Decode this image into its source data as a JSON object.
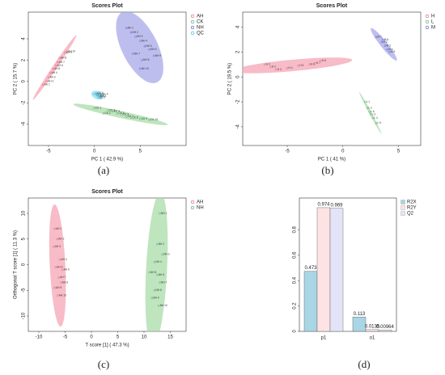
{
  "chart_data": [
    {
      "type": "scatter",
      "title": "Scores Plot",
      "panel_label": "(a)",
      "x_label": "PC 1 ( 42.9 %)",
      "y_label": "PC 2 ( 15.7 %)",
      "xlim": [
        -7.2,
        10
      ],
      "ylim": [
        -6,
        6.5
      ],
      "xticks": [
        -5,
        0,
        5
      ],
      "yticks": [
        -4,
        -2,
        0,
        2,
        4
      ],
      "legend": "right",
      "series": [
        {
          "name": "AH",
          "color": "#e0506a",
          "fill": "#f4a6b4",
          "x": [
            -5.6,
            -5.2,
            -5,
            -4.8,
            -4.5,
            -4.2,
            -4,
            -3.8,
            -3.2,
            -3
          ],
          "y": [
            -0.3,
            0,
            0.4,
            0.8,
            1.2,
            1.5,
            1.8,
            2.2,
            2.7,
            2.8
          ],
          "labels": [
            "AH 1",
            "AH 2",
            "AH 3",
            "AH 4",
            "AH 5",
            "AH 6",
            "AH 7",
            "AH 8",
            "AH 9",
            "AH 10"
          ]
        },
        {
          "name": "CK",
          "color": "#3aa55a",
          "fill": "#a8dca8",
          "x": [
            0,
            1,
            1.5,
            2,
            2.5,
            3,
            3.5,
            4,
            5,
            6
          ],
          "y": [
            -2.5,
            -3,
            -2.7,
            -2.8,
            -3,
            -3.1,
            -3.3,
            -3.4,
            -3.5,
            -3.6
          ],
          "labels": [
            "CK 1",
            "CK 2",
            "CK 3",
            "CK 4",
            "CK 5",
            "CK 6",
            "CK 7",
            "CK 8",
            "CK 9",
            "CK 10"
          ]
        },
        {
          "name": "NH",
          "color": "#4a4ad0",
          "fill": "#a8a8e8",
          "x": [
            3.5,
            4,
            4.5,
            5,
            5.5,
            6,
            4.2,
            5.2,
            6.5,
            5
          ],
          "y": [
            5,
            4.6,
            4.2,
            3.8,
            3.3,
            3,
            2.6,
            2,
            2.4,
            1.2
          ],
          "labels": [
            "NH 1",
            "NH 2",
            "NH 3",
            "NH 4",
            "NH 5",
            "NH 6",
            "NH 7",
            "NH 8",
            "NH 9",
            "NH 10"
          ]
        },
        {
          "name": "QC",
          "color": "#20b8e0",
          "fill": "#90dcf0",
          "x": [
            0,
            0.3,
            0.5,
            0.7,
            0.4,
            0.2
          ],
          "y": [
            -1.2,
            -1.3,
            -1.4,
            -1.2,
            -1.5,
            -1.1
          ],
          "labels": [
            "QC 1",
            "QC 2",
            "QC 3",
            "QC 4",
            "QC 5",
            "QC 6"
          ]
        }
      ]
    },
    {
      "type": "scatter",
      "title": "Scores Plot",
      "panel_label": "(b)",
      "x_label": "PC 1 ( 41 %)",
      "y_label": "PC 2 ( 19.5 %)",
      "xlim": [
        -9,
        7
      ],
      "ylim": [
        -5.5,
        5.2
      ],
      "xticks": [
        -5,
        0,
        5
      ],
      "yticks": [
        -4,
        -2,
        0,
        2,
        4
      ],
      "legend": "right",
      "series": [
        {
          "name": "H",
          "color": "#e0506a",
          "fill": "#f4a6b4",
          "x": [
            -7,
            -6.5,
            -6,
            -5,
            -4,
            -3,
            -2.5,
            -2
          ],
          "y": [
            1,
            0.8,
            0.6,
            0.7,
            0.9,
            1,
            1.1,
            1.3
          ],
          "labels": [
            "H 1",
            "H 2",
            "H 3",
            "H 4",
            "H 5",
            "H 6",
            "H 7",
            "H 8"
          ]
        },
        {
          "name": "L",
          "color": "#3aa55a",
          "fill": "#a8dca8",
          "x": [
            2,
            2.2,
            2.5,
            2.7,
            3,
            2.4
          ],
          "y": [
            -2,
            -2.5,
            -3,
            -3.3,
            -3.7,
            -2.8
          ],
          "labels": [
            "L 1",
            "L 2",
            "L 3",
            "L 4",
            "L 5",
            "L 6"
          ]
        },
        {
          "name": "M",
          "color": "#4a4ad0",
          "fill": "#a8a8e8",
          "x": [
            3,
            3.5,
            3.8,
            4,
            4.2,
            3.6
          ],
          "y": [
            3.2,
            2.8,
            2.5,
            2.2,
            2,
            3
          ],
          "labels": [
            "M 1",
            "M 2",
            "M 3",
            "M 4",
            "M 5",
            "M 6"
          ]
        }
      ]
    },
    {
      "type": "scatter",
      "title": "Scores Plot",
      "panel_label": "(c)",
      "x_label": "T score [1] ( 47.3 %)",
      "y_label": "Orthogonal T score [1] ( 11.3 %)",
      "xlim": [
        -12,
        18
      ],
      "ylim": [
        -13,
        13
      ],
      "xticks": [
        -10,
        -5,
        0,
        5,
        10,
        15
      ],
      "yticks": [
        -10,
        -5,
        0,
        5,
        10
      ],
      "legend": "right",
      "series": [
        {
          "name": "AH",
          "color": "#e0506a",
          "fill": "#f4a6b4",
          "x": [
            -7,
            -6.5,
            -7.2,
            -6,
            -6.8,
            -5.5,
            -6.2,
            -5.8,
            -7,
            -6.4
          ],
          "y": [
            7,
            5,
            3.5,
            1,
            -0.5,
            -1,
            -2.5,
            -3.5,
            -4.5,
            -6
          ],
          "labels": [
            "AH 1",
            "AH 2",
            "AH 3",
            "AH 4",
            "AH 5",
            "AH 6",
            "AH 7",
            "AH 8",
            "AH 9",
            "AH 10"
          ]
        },
        {
          "name": "NH",
          "color": "#3aa55a",
          "fill": "#a8dca8",
          "x": [
            13,
            12.5,
            13.5,
            12,
            11,
            12.5,
            13,
            12,
            11.5,
            12.8
          ],
          "y": [
            10,
            4,
            2,
            0.5,
            -1.5,
            -2,
            -3.5,
            -5,
            -6.5,
            -8
          ],
          "labels": [
            "NH 1",
            "NH 2",
            "NH 3",
            "NH 4",
            "NH 5",
            "NH 6",
            "NH 7",
            "NH 8",
            "NH 9",
            "NH 10"
          ]
        }
      ]
    },
    {
      "type": "bar",
      "panel_label": "(d)",
      "categories": [
        "p1",
        "o1"
      ],
      "ylim": [
        0,
        1.05
      ],
      "yticks": [
        0,
        0.2,
        0.4,
        0.6,
        0.8
      ],
      "legend": "right",
      "series": [
        {
          "name": "R2X",
          "color": "#a9d6e5",
          "values": [
            0.473,
            0.113
          ]
        },
        {
          "name": "R2Y",
          "color": "#fde3e3",
          "values": [
            0.974,
            0.0135
          ]
        },
        {
          "name": "Q2",
          "color": "#e4e4f8",
          "values": [
            0.969,
            0.00964
          ]
        }
      ]
    }
  ]
}
